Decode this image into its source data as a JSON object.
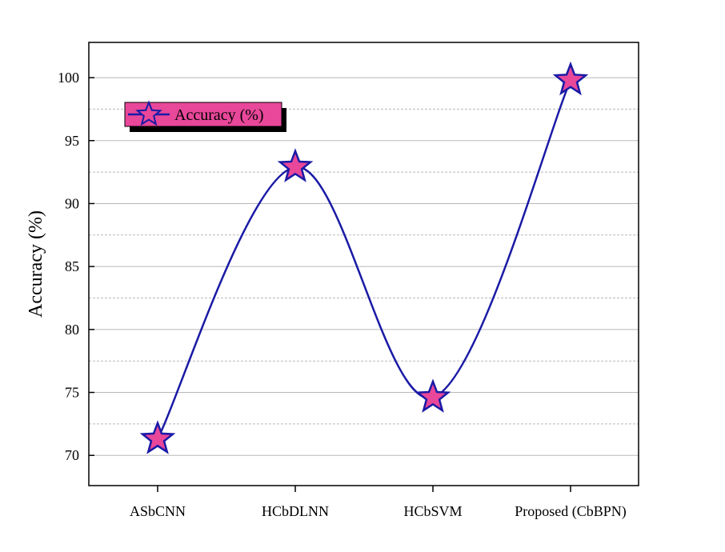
{
  "chart_data": {
    "type": "line",
    "categories": [
      "ASbCNN",
      "HCbDLNN",
      "HCbSVM",
      "Proposed (CbBPN)"
    ],
    "series": [
      {
        "name": "Accuracy (%)",
        "values": [
          71.3,
          92.9,
          74.6,
          99.8
        ]
      }
    ],
    "title": "",
    "xlabel": "",
    "ylabel": "Accuracy (%)",
    "ylim": [
      67.6,
      102.8
    ],
    "yticks": [
      70,
      75,
      80,
      85,
      90,
      95,
      100
    ],
    "grid": true,
    "legend_position": "top-left",
    "smooth": true,
    "colors": {
      "line": "#1a1aa6",
      "marker_fill": "#e8479a",
      "marker_stroke": "#1a1aa6",
      "legend_fill": "#e8479a",
      "legend_shadow": "#000000",
      "grid": "#b8b8b8"
    },
    "marker": "star"
  }
}
